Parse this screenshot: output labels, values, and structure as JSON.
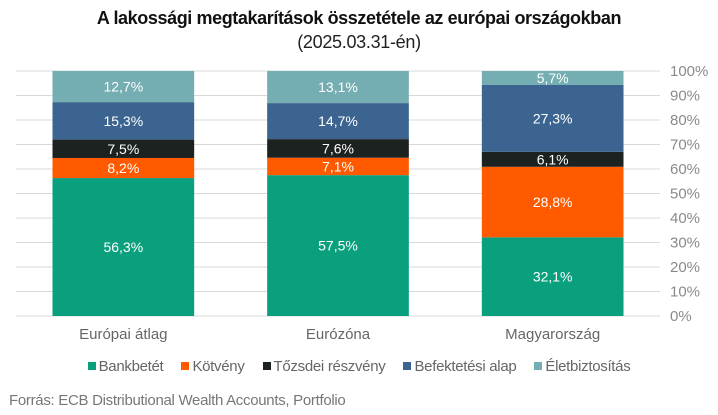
{
  "chart_data": {
    "type": "bar",
    "stacked": true,
    "title": "A lakossági megtakarítások összetétele az európai országokban",
    "subtitle": "(2025.03.31-én)",
    "categories": [
      "Európai átlag",
      "Eurózóna",
      "Magyarország"
    ],
    "series": [
      {
        "name": "Bankbetét",
        "color": "#0aa07e",
        "values": [
          56.3,
          57.5,
          32.1
        ],
        "labels": [
          "56,3%",
          "57,5%",
          "32,1%"
        ]
      },
      {
        "name": "Kötvény",
        "color": "#ff5a00",
        "values": [
          8.2,
          7.1,
          28.8
        ],
        "labels": [
          "8,2%",
          "7,1%",
          "28,8%"
        ]
      },
      {
        "name": "Tőzsdei részvény",
        "color": "#1c2220",
        "values": [
          7.5,
          7.6,
          6.1
        ],
        "labels": [
          "7,5%",
          "7,6%",
          "6,1%"
        ]
      },
      {
        "name": "Befektetési alap",
        "color": "#3c6490",
        "values": [
          15.3,
          14.7,
          27.3
        ],
        "labels": [
          "15,3%",
          "14,7%",
          "27,3%"
        ]
      },
      {
        "name": "Életbiztosítás",
        "color": "#74adb2",
        "values": [
          12.7,
          13.1,
          5.7
        ],
        "labels": [
          "12,7%",
          "13,1%",
          "5,7%"
        ]
      }
    ],
    "yticks": [
      "0%",
      "10%",
      "20%",
      "30%",
      "40%",
      "50%",
      "60%",
      "70%",
      "80%",
      "90%",
      "100%"
    ],
    "ylim": [
      0,
      100
    ],
    "xlabel": "",
    "ylabel": "",
    "grid": true,
    "legend_position": "bottom"
  },
  "source": "Forrás: ECB Distributional Wealth Accounts, Portfolio"
}
